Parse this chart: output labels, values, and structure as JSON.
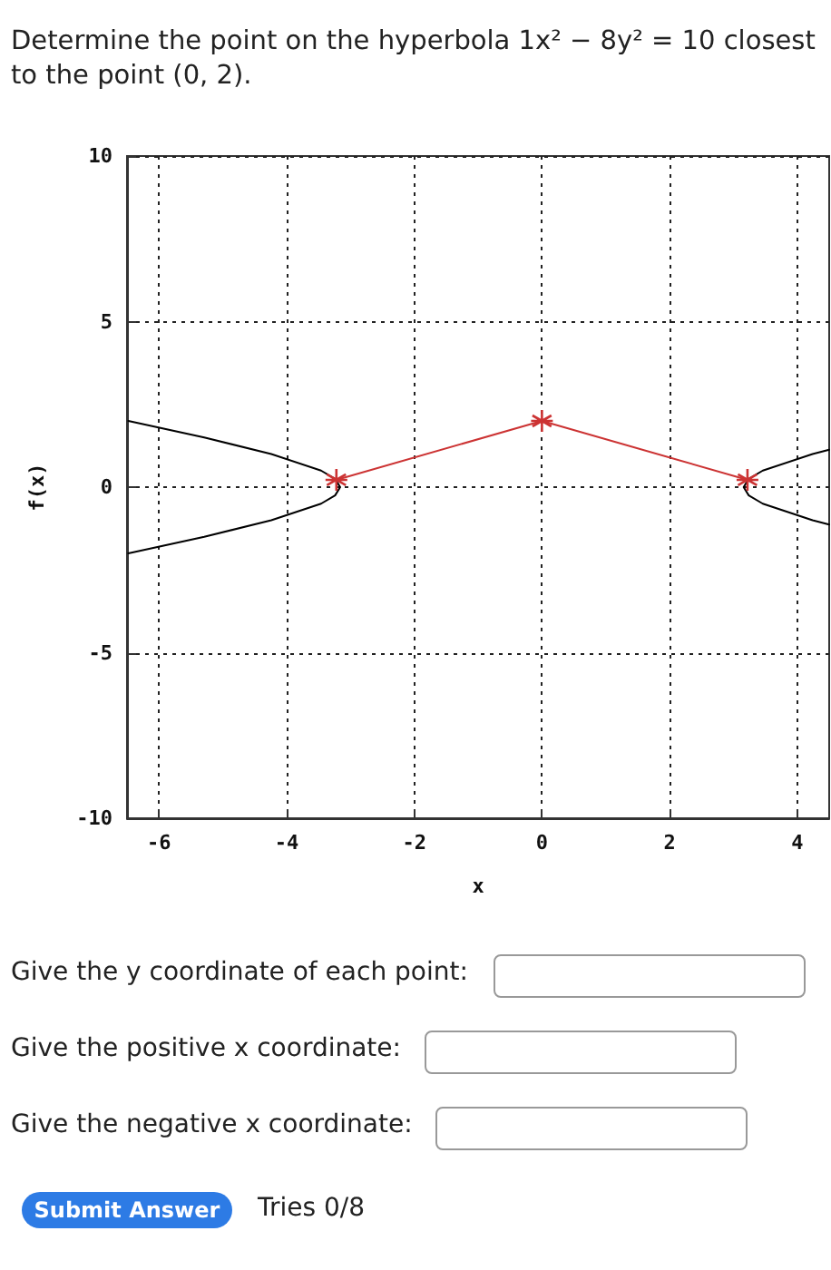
{
  "chart_data": {
    "type": "line",
    "title": "Determine the point on the hyperbola 1x² − 8y² = 10 closest to the point (0, 2).",
    "xlabel": "x",
    "ylabel": "f(x)",
    "xlim": [
      -6.5,
      4.5
    ],
    "xticks": [
      -6,
      -4,
      -2,
      0,
      2,
      4
    ],
    "ylim": [
      -10,
      10
    ],
    "yticks": [
      -10,
      -5,
      0,
      5,
      10
    ],
    "grid": true,
    "line_style": "solid",
    "series": [
      {
        "color": "#000000",
        "marker": "none",
        "x": [
          -6.48,
          -5.29,
          -4.24,
          -3.46,
          -3.24,
          -3.16,
          -3.24,
          -3.46,
          -4.24,
          -5.29,
          -6.48
        ],
        "values": [
          2,
          1.5,
          1,
          0.5,
          0.25,
          0,
          -0.25,
          -0.5,
          -1,
          -1.5,
          -2
        ]
      },
      {
        "color": "#000000",
        "marker": "none",
        "x": [
          4.5,
          4.24,
          3.46,
          3.24,
          3.16,
          3.24,
          3.46,
          4.24,
          4.5
        ],
        "values": [
          1.13,
          1,
          0.5,
          0.25,
          0,
          -0.25,
          -0.5,
          -1,
          -1.13
        ]
      },
      {
        "color": "#cc3333",
        "marker": "cross",
        "x": [
          -3.22,
          0,
          3.22
        ],
        "values": [
          0.22,
          2,
          0.22
        ]
      }
    ],
    "annotations": [
      "Give the y coordinate of each point:",
      "Give the positive x coordinate:",
      "Give the negative x coordinate:",
      "Submit Answer",
      "Tries 0/8"
    ]
  }
}
